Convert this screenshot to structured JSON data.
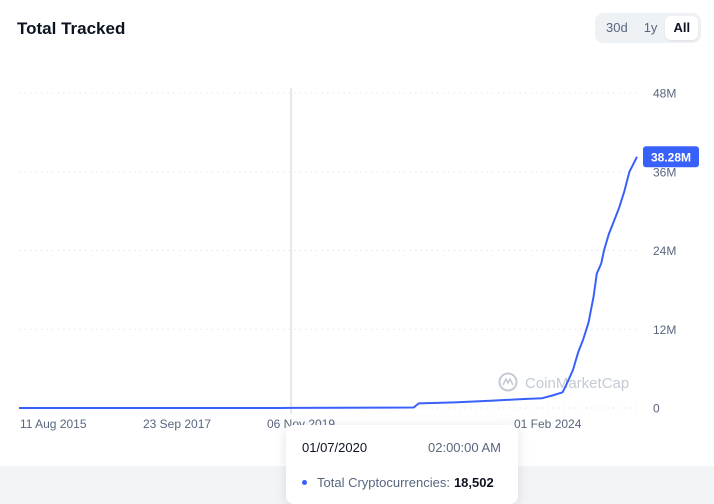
{
  "header": {
    "title": "Total Tracked"
  },
  "range_buttons": [
    {
      "label": "30d",
      "active": false
    },
    {
      "label": "1y",
      "active": false
    },
    {
      "label": "All",
      "active": true
    }
  ],
  "watermark": "CoinMarketCap",
  "colors": {
    "line": "#3861fb",
    "badge": "#3861fb",
    "grid": "#e2e6ec",
    "axis_text": "#58667e"
  },
  "tooltip": {
    "date": "01/07/2020",
    "time": "02:00:00 AM",
    "series_label": "Total Cryptocurrencies:",
    "value": "18,502"
  },
  "chart_data": {
    "type": "line",
    "title": "Total Tracked",
    "x_tick_labels": [
      "11 Aug 2015",
      "23 Sep 2017",
      "06 Nov 2019",
      "01 Feb 2024"
    ],
    "y_tick_labels": [
      "0",
      "12M",
      "24M",
      "36M",
      "48M"
    ],
    "y_ticks": [
      0,
      12000000,
      24000000,
      36000000,
      48000000
    ],
    "ylim": [
      0,
      48000000
    ],
    "xlim": [
      "2015-08-11",
      "2025-08-15"
    ],
    "grid": true,
    "last_value_label": "38.28M",
    "hover_date": "2020-01-07",
    "series": [
      {
        "points": [
          [
            "2015-08-11",
            0
          ],
          [
            "2017-09-23",
            500
          ],
          [
            "2019-11-06",
            6000
          ],
          [
            "2020-01-07",
            18502
          ],
          [
            "2022-01-01",
            80000
          ],
          [
            "2022-02-01",
            700000
          ],
          [
            "2022-09-01",
            850000
          ],
          [
            "2023-04-01",
            1100000
          ],
          [
            "2023-10-01",
            1350000
          ],
          [
            "2024-02-01",
            1500000
          ],
          [
            "2024-04-01",
            1900000
          ],
          [
            "2024-06-01",
            2400000
          ],
          [
            "2024-07-01",
            4000000
          ],
          [
            "2024-08-01",
            5800000
          ],
          [
            "2024-09-01",
            8500000
          ],
          [
            "2024-10-01",
            10500000
          ],
          [
            "2024-11-01",
            13000000
          ],
          [
            "2024-12-01",
            17000000
          ],
          [
            "2024-12-20",
            20500000
          ],
          [
            "2025-01-15",
            22000000
          ],
          [
            "2025-02-01",
            24000000
          ],
          [
            "2025-03-01",
            26500000
          ],
          [
            "2025-04-01",
            28500000
          ],
          [
            "2025-05-01",
            30500000
          ],
          [
            "2025-06-01",
            33000000
          ],
          [
            "2025-07-01",
            36000000
          ],
          [
            "2025-08-15",
            38280000
          ]
        ]
      }
    ]
  }
}
